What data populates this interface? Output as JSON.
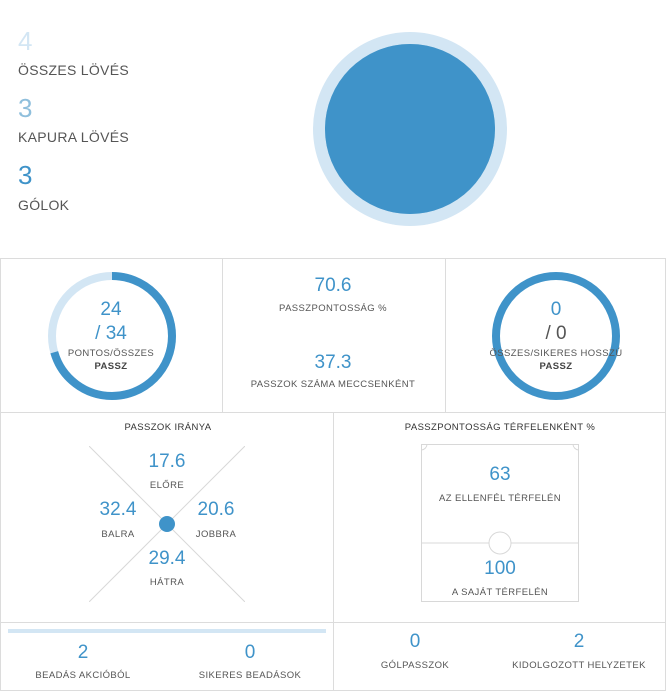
{
  "top": {
    "total_shots": {
      "value": "4",
      "label": "ÖSSZES LÖVÉS"
    },
    "shots_on_target": {
      "value": "3",
      "label": "KAPURA LÖVÉS"
    },
    "goals": {
      "value": "3",
      "label": "GÓLOK"
    },
    "colors": {
      "light": "#d3e6f4",
      "mid": "#8fbfdc",
      "dark": "#3f93c9"
    }
  },
  "passes": {
    "accurate": "24",
    "total": "/ 34",
    "label_line1": "PONTOS/ÖSSZES",
    "label_line2": "PASSZ",
    "accuracy_fraction": 0.706
  },
  "pass_stats": {
    "accuracy_value": "70.6",
    "accuracy_label": "PASSZPONTOSSÁG %",
    "per_match_value": "37.3",
    "per_match_label": "PASSZOK SZÁMA MECCSENKÉNT"
  },
  "long_passes": {
    "successful": "0",
    "total": "/ 0",
    "label_line1": "ÖSSZES/SIKERES HOSSZÚ",
    "label_line2": "PASSZ"
  },
  "direction": {
    "title": "PASSZOK IRÁNYA",
    "forward": {
      "value": "17.6",
      "label": "ELŐRE"
    },
    "left": {
      "value": "32.4",
      "label": "BALRA"
    },
    "right": {
      "value": "20.6",
      "label": "JOBBRA"
    },
    "back": {
      "value": "29.4",
      "label": "HÁTRA"
    }
  },
  "half_accuracy": {
    "title": "PASSZPONTOSSÁG TÉRFELENKÉNT %",
    "opponent": {
      "value": "63",
      "label": "AZ ELLENFÉL TÉRFELÉN"
    },
    "own": {
      "value": "100",
      "label": "A SAJÁT TÉRFELÉN"
    }
  },
  "crosses": {
    "open_play": {
      "value": "2",
      "label": "BEADÁS AKCIÓBÓL"
    },
    "successful": {
      "value": "0",
      "label": "SIKERES BEADÁSOK"
    }
  },
  "chances": {
    "assists": {
      "value": "0",
      "label": "GÓLPASSZOK"
    },
    "created": {
      "value": "2",
      "label": "KIDOLGOZOTT HELYZETEK"
    }
  }
}
